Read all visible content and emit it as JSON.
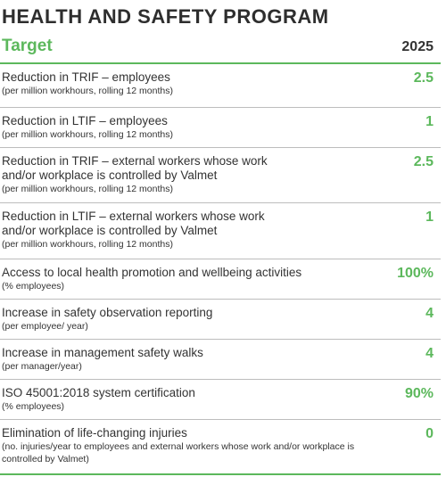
{
  "title": "HEALTH AND SAFETY PROGRAM",
  "header": {
    "target": "Target",
    "year": "2025"
  },
  "rows": [
    {
      "label": "Reduction in TRIF – employees",
      "sub": "(per million workhours, rolling 12 months)",
      "value": "2.5"
    },
    {
      "label": "Reduction in LTIF – employees",
      "sub": "(per million workhours, rolling 12 months)",
      "value": "1"
    },
    {
      "label": "Reduction in TRIF – external workers whose work and/or workplace is controlled by Valmet",
      "sub": "(per million workhours, rolling 12 months)",
      "value": "2.5"
    },
    {
      "label": "Reduction in LTIF – external workers whose work and/or workplace is controlled by Valmet",
      "sub": "(per million workhours, rolling 12 months)",
      "value": "1"
    },
    {
      "label": "Access to local health promotion and wellbeing activities",
      "sub": "(% employees)",
      "value": "100%"
    },
    {
      "label": "Increase in safety observation reporting",
      "sub": "(per employee/ year)",
      "value": "4"
    },
    {
      "label": "Increase in management safety walks",
      "sub": "(per manager/year)",
      "value": "4"
    },
    {
      "label": "ISO 45001:2018 system certification",
      "sub": "(% employees)",
      "value": "90%"
    },
    {
      "label": "Elimination of life-changing injuries",
      "sub": "(no. injuries/year to employees and external workers whose work and/or workplace is controlled by Valmet)",
      "value": "0"
    }
  ]
}
